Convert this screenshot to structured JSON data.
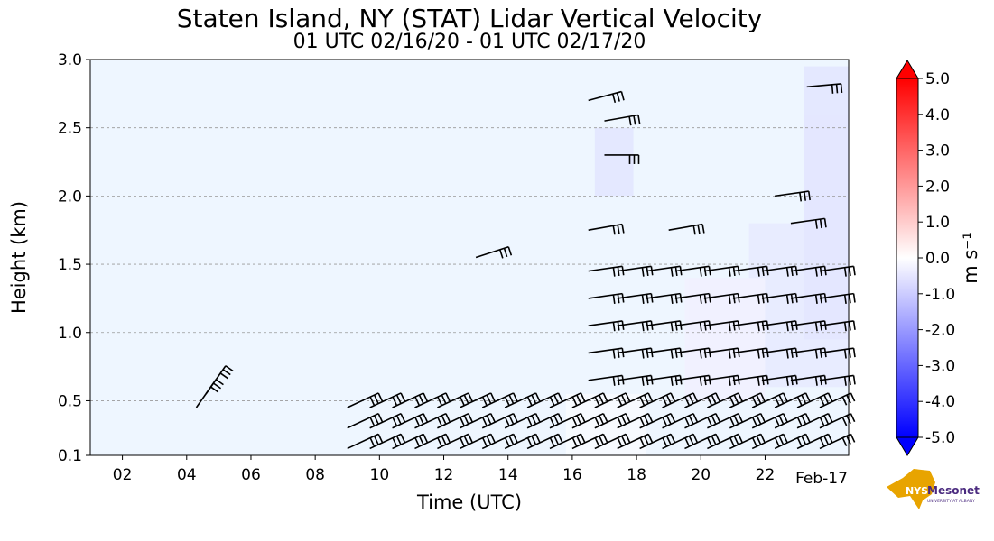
{
  "chart_data": {
    "type": "heatmap",
    "title": "Staten Island, NY (STAT) Lidar Vertical Velocity",
    "subtitle": "01 UTC 02/16/20 - 01 UTC 02/17/20",
    "xlabel": "Time (UTC)",
    "ylabel": "Height (km)",
    "xlim": [
      1,
      24.6
    ],
    "ylim": [
      0.1,
      3.0
    ],
    "x_tick_labels": [
      "02",
      "04",
      "06",
      "08",
      "10",
      "12",
      "14",
      "16",
      "18",
      "20",
      "22"
    ],
    "x_tick_values": [
      2,
      4,
      6,
      8,
      10,
      12,
      14,
      16,
      18,
      20,
      22
    ],
    "x_date_label": "Feb-17",
    "y_tick_values": [
      0.1,
      0.5,
      1.0,
      1.5,
      2.0,
      2.5,
      3.0
    ],
    "y_tick_labels": [
      "0.1",
      "0.5",
      "1.0",
      "1.5",
      "2.0",
      "2.5",
      "3.0"
    ],
    "grid": "horizontal dashed",
    "colorbar": {
      "label": "m s⁻¹",
      "range": [
        -5.0,
        5.0
      ],
      "tick_labels": [
        "5.0",
        "4.0",
        "3.0",
        "2.0",
        "1.0",
        "0.0",
        "-1.0",
        "-2.0",
        "-3.0",
        "-4.0",
        "-5.0"
      ],
      "tick_values": [
        5,
        4,
        3,
        2,
        1,
        0,
        -1,
        -2,
        -3,
        -4,
        -5
      ],
      "colors": {
        "max": "#ff0000",
        "mid": "#ffffff",
        "min": "#0000ff"
      }
    },
    "background_value_color": "#eef6ff",
    "series": [
      {
        "name": "",
        "note": ""
      }
    ]
  },
  "logo": {
    "text_main": "NYS",
    "text_brand": "Mesonet",
    "text_sub": "UNIVERSITY AT ALBANY",
    "colors": {
      "gold": "#e8a400",
      "purple": "#4a2a7f"
    }
  }
}
